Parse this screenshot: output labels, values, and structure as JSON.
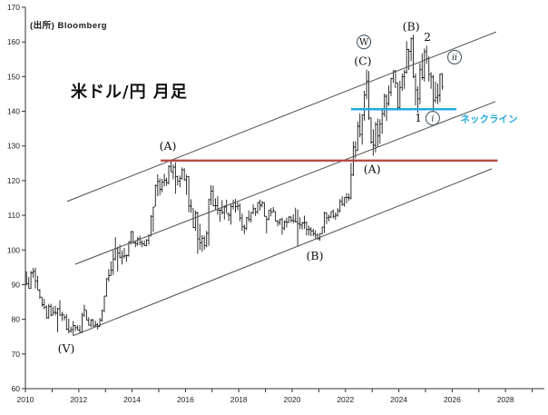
{
  "source_label": "(出所)  Bloomberg",
  "chart_title": "米ドル/円 月足",
  "colors": {
    "bars": "#1a1a1a",
    "axis": "#333333",
    "channel_line": "#5a5a5a",
    "resistance_line": "#b84a43",
    "neckline": "#22aade",
    "wave_label": "#111111",
    "circle_stroke": "#4a5a6a"
  },
  "chart_data": {
    "type": "ohlc-bar",
    "title": "米ドル/円 月足",
    "start_month": "2010-01",
    "months_hlc": [
      [
        93.8,
        89.8,
        90.3
      ],
      [
        92.2,
        88.9,
        88.9
      ],
      [
        94.0,
        88.8,
        93.4
      ],
      [
        94.8,
        92.0,
        93.8
      ],
      [
        94.9,
        88.9,
        91.0
      ],
      [
        92.5,
        88.5,
        88.4
      ],
      [
        88.7,
        85.9,
        86.4
      ],
      [
        86.4,
        83.6,
        84.2
      ],
      [
        85.9,
        82.9,
        83.5
      ],
      [
        84.0,
        80.2,
        80.4
      ],
      [
        84.4,
        80.2,
        83.7
      ],
      [
        84.5,
        80.9,
        81.1
      ],
      [
        83.7,
        81.3,
        82.0
      ],
      [
        83.9,
        81.1,
        81.8
      ],
      [
        83.3,
        76.3,
        83.1
      ],
      [
        85.5,
        81.0,
        81.2
      ],
      [
        82.2,
        79.5,
        81.5
      ],
      [
        81.3,
        79.7,
        80.6
      ],
      [
        81.5,
        76.9,
        77.2
      ],
      [
        80.2,
        75.9,
        76.6
      ],
      [
        77.9,
        76.1,
        77.0
      ],
      [
        79.5,
        75.3,
        78.2
      ],
      [
        78.3,
        76.6,
        77.6
      ],
      [
        78.3,
        76.9,
        76.9
      ],
      [
        78.3,
        76.0,
        76.3
      ],
      [
        81.9,
        76.0,
        81.2
      ],
      [
        84.2,
        80.6,
        82.8
      ],
      [
        82.6,
        79.7,
        79.8
      ],
      [
        80.6,
        78.2,
        78.3
      ],
      [
        80.1,
        77.7,
        79.8
      ],
      [
        80.1,
        77.9,
        78.1
      ],
      [
        79.6,
        77.9,
        78.4
      ],
      [
        78.9,
        77.1,
        77.9
      ],
      [
        80.4,
        77.9,
        79.8
      ],
      [
        82.8,
        79.3,
        82.5
      ],
      [
        86.8,
        82.1,
        86.7
      ],
      [
        91.9,
        86.5,
        91.7
      ],
      [
        94.5,
        90.9,
        92.6
      ],
      [
        96.7,
        92.6,
        94.2
      ],
      [
        99.9,
        92.8,
        97.4
      ],
      [
        103.7,
        96.9,
        100.4
      ],
      [
        100.9,
        93.8,
        99.1
      ],
      [
        101.5,
        97.6,
        97.9
      ],
      [
        99.9,
        95.8,
        98.2
      ],
      [
        100.6,
        97.5,
        98.3
      ],
      [
        98.7,
        96.6,
        98.4
      ],
      [
        102.4,
        98.1,
        102.4
      ],
      [
        105.4,
        101.6,
        105.3
      ],
      [
        105.4,
        101.8,
        102.0
      ],
      [
        102.7,
        100.8,
        101.8
      ],
      [
        103.8,
        101.2,
        103.2
      ],
      [
        104.1,
        101.3,
        102.2
      ],
      [
        102.8,
        100.8,
        101.8
      ],
      [
        102.8,
        101.1,
        101.3
      ],
      [
        103.1,
        101.1,
        102.8
      ],
      [
        104.5,
        101.5,
        104.1
      ],
      [
        110.1,
        103.9,
        109.7
      ],
      [
        112.5,
        105.2,
        112.3
      ],
      [
        118.9,
        112.6,
        118.6
      ],
      [
        121.8,
        115.5,
        119.8
      ],
      [
        120.7,
        115.8,
        117.5
      ],
      [
        120.5,
        116.6,
        119.6
      ],
      [
        122.0,
        118.3,
        120.1
      ],
      [
        120.8,
        118.5,
        119.4
      ],
      [
        124.5,
        118.9,
        124.1
      ],
      [
        125.9,
        122.5,
        122.5
      ],
      [
        124.6,
        120.4,
        123.9
      ],
      [
        125.3,
        116.2,
        121.2
      ],
      [
        121.4,
        118.6,
        119.9
      ],
      [
        121.5,
        118.1,
        120.6
      ],
      [
        123.8,
        120.3,
        123.1
      ],
      [
        123.6,
        120.0,
        120.2
      ],
      [
        121.7,
        115.9,
        121.1
      ],
      [
        121.3,
        110.9,
        112.7
      ],
      [
        114.6,
        110.7,
        112.6
      ],
      [
        111.9,
        106.3,
        106.5
      ],
      [
        111.4,
        105.5,
        110.7
      ],
      [
        111.0,
        98.9,
        103.2
      ],
      [
        107.5,
        100.0,
        102.1
      ],
      [
        104.3,
        99.5,
        103.4
      ],
      [
        104.1,
        100.1,
        101.3
      ],
      [
        105.5,
        100.8,
        104.8
      ],
      [
        114.8,
        101.2,
        114.5
      ],
      [
        118.7,
        112.9,
        117.0
      ],
      [
        118.6,
        112.6,
        112.8
      ],
      [
        114.9,
        111.6,
        112.8
      ],
      [
        115.5,
        110.1,
        111.4
      ],
      [
        111.8,
        108.1,
        111.5
      ],
      [
        114.4,
        110.2,
        110.8
      ],
      [
        112.9,
        108.8,
        112.4
      ],
      [
        114.5,
        110.6,
        110.3
      ],
      [
        110.9,
        108.3,
        110.0
      ],
      [
        113.3,
        107.3,
        112.5
      ],
      [
        114.5,
        111.7,
        113.6
      ],
      [
        114.7,
        110.8,
        112.5
      ],
      [
        113.8,
        111.4,
        112.7
      ],
      [
        113.4,
        108.3,
        109.2
      ],
      [
        110.5,
        105.5,
        106.7
      ],
      [
        107.3,
        104.6,
        106.3
      ],
      [
        109.5,
        105.7,
        109.3
      ],
      [
        111.4,
        108.1,
        108.8
      ],
      [
        110.9,
        107.9,
        110.8
      ],
      [
        113.2,
        110.3,
        111.9
      ],
      [
        112.2,
        109.8,
        111.0
      ],
      [
        113.7,
        110.4,
        113.7
      ],
      [
        114.5,
        111.4,
        112.9
      ],
      [
        114.2,
        112.3,
        113.6
      ],
      [
        113.8,
        109.6,
        109.7
      ],
      [
        109.7,
        104.8,
        108.9
      ],
      [
        111.5,
        108.5,
        111.4
      ],
      [
        112.1,
        109.7,
        110.9
      ],
      [
        112.4,
        110.8,
        111.4
      ],
      [
        111.1,
        108.3,
        108.3
      ],
      [
        108.7,
        106.8,
        107.9
      ],
      [
        109.0,
        107.2,
        108.8
      ],
      [
        109.3,
        104.4,
        106.3
      ],
      [
        108.5,
        105.7,
        108.1
      ],
      [
        109.3,
        106.5,
        108.0
      ],
      [
        109.7,
        107.8,
        109.5
      ],
      [
        109.7,
        107.9,
        108.6
      ],
      [
        110.3,
        107.7,
        108.4
      ],
      [
        112.2,
        107.9,
        108.1
      ],
      [
        111.7,
        101.2,
        107.5
      ],
      [
        109.4,
        106.0,
        107.2
      ],
      [
        108.1,
        105.9,
        107.8
      ],
      [
        109.9,
        106.1,
        107.9
      ],
      [
        108.2,
        104.2,
        105.9
      ],
      [
        107.0,
        104.2,
        105.9
      ],
      [
        106.6,
        104.0,
        105.5
      ],
      [
        106.1,
        104.0,
        104.7
      ],
      [
        105.7,
        103.2,
        104.3
      ],
      [
        104.8,
        102.9,
        103.3
      ],
      [
        104.9,
        102.6,
        104.7
      ],
      [
        106.7,
        104.5,
        106.6
      ],
      [
        111.0,
        104.9,
        110.7
      ],
      [
        110.8,
        107.5,
        109.3
      ],
      [
        110.2,
        108.3,
        109.5
      ],
      [
        111.1,
        109.2,
        111.1
      ],
      [
        111.7,
        109.1,
        109.7
      ],
      [
        110.8,
        108.7,
        110.0
      ],
      [
        112.1,
        109.6,
        111.3
      ],
      [
        114.7,
        110.8,
        114.0
      ],
      [
        115.5,
        112.7,
        113.2
      ],
      [
        115.2,
        112.5,
        115.1
      ],
      [
        116.4,
        113.5,
        115.1
      ],
      [
        116.3,
        114.2,
        115.0
      ],
      [
        125.1,
        114.6,
        121.7
      ],
      [
        131.3,
        121.3,
        129.7
      ],
      [
        131.4,
        126.4,
        128.7
      ],
      [
        137.0,
        128.6,
        135.7
      ],
      [
        139.4,
        132.5,
        133.3
      ],
      [
        139.1,
        130.4,
        138.9
      ],
      [
        145.9,
        137.3,
        144.7
      ],
      [
        152.0,
        143.5,
        148.7
      ],
      [
        151.6,
        137.5,
        138.1
      ],
      [
        138.2,
        130.6,
        131.1
      ],
      [
        134.8,
        127.2,
        130.2
      ],
      [
        136.9,
        128.1,
        136.2
      ],
      [
        137.9,
        129.6,
        132.9
      ],
      [
        137.7,
        130.6,
        136.3
      ],
      [
        140.9,
        133.5,
        139.3
      ],
      [
        145.1,
        138.4,
        144.3
      ],
      [
        144.9,
        137.2,
        142.2
      ],
      [
        147.4,
        141.5,
        145.5
      ],
      [
        149.7,
        144.4,
        149.4
      ],
      [
        151.7,
        148.2,
        151.7
      ],
      [
        151.9,
        146.7,
        148.2
      ],
      [
        148.3,
        140.2,
        141.0
      ],
      [
        148.8,
        140.8,
        146.9
      ],
      [
        150.9,
        145.9,
        150.0
      ],
      [
        152.0,
        146.5,
        151.3
      ],
      [
        160.2,
        150.8,
        157.8
      ],
      [
        158.0,
        151.9,
        157.3
      ],
      [
        161.3,
        154.5,
        160.9
      ],
      [
        162.0,
        149.6,
        150.0
      ],
      [
        150.9,
        141.7,
        146.2
      ],
      [
        147.2,
        139.6,
        143.6
      ],
      [
        153.9,
        142.0,
        152.0
      ],
      [
        156.7,
        149.1,
        149.7
      ],
      [
        158.1,
        148.6,
        157.2
      ],
      [
        158.9,
        153.7,
        155.2
      ],
      [
        155.9,
        148.6,
        150.6
      ],
      [
        151.3,
        146.5,
        149.9
      ],
      [
        150.5,
        139.9,
        143.1
      ],
      [
        148.6,
        142.4,
        144.0
      ],
      [
        148.0,
        142.1,
        144.6
      ],
      [
        150.9,
        142.7,
        150.7
      ],
      [
        151.0,
        146.2,
        147.1
      ]
    ],
    "x_axis": {
      "min_year": 2010,
      "max_year": 2029.5,
      "label_years": [
        2010,
        2012,
        2014,
        2016,
        2018,
        2020,
        2022,
        2024,
        2026,
        2028
      ],
      "minor_tick_step": 1
    },
    "y_axis": {
      "min": 60,
      "max": 170,
      "step": 10,
      "ticks": [
        170,
        160,
        150,
        140,
        130,
        120,
        110,
        100,
        90,
        80,
        70,
        60
      ]
    },
    "channel_lines": [
      {
        "name": "upper-channel-line",
        "from": {
          "year": 2011.56,
          "price": 114.0
        },
        "to": {
          "year": 2027.65,
          "price": 162.9
        }
      },
      {
        "name": "middle-channel-line",
        "from": {
          "year": 2011.87,
          "price": 95.9
        },
        "to": {
          "year": 2027.62,
          "price": 142.8
        }
      },
      {
        "name": "lower-channel-line",
        "from": {
          "year": 2011.8,
          "price": 75.3
        },
        "to": {
          "year": 2027.48,
          "price": 123.4
        }
      }
    ],
    "resistance_line": {
      "price": 125.8,
      "from_year": 2015.07,
      "to_year": 2027.7
    },
    "neckline": {
      "price": 140.6,
      "from_year": 2022.21,
      "to_year": 2026.16,
      "label": "ネックライン"
    },
    "annotations": [
      {
        "text": "(V)",
        "year": 2011.53,
        "price": 71.5,
        "style": "wave"
      },
      {
        "text": "(A)",
        "year": 2015.34,
        "price": 129.9,
        "style": "wave"
      },
      {
        "text": "(B)",
        "year": 2020.85,
        "price": 98.3,
        "style": "wave"
      },
      {
        "text": "(A)",
        "year": 2023.0,
        "price": 123.3,
        "style": "wave"
      },
      {
        "text": "(C)",
        "year": 2022.65,
        "price": 154.4,
        "style": "wave"
      },
      {
        "text": "W",
        "year": 2022.69,
        "price": 160.0,
        "style": "circled"
      },
      {
        "text": "(B)",
        "year": 2024.46,
        "price": 164.4,
        "style": "wave"
      },
      {
        "text": "2",
        "year": 2025.07,
        "price": 161.4,
        "style": "wave"
      },
      {
        "text": "ii",
        "year": 2026.09,
        "price": 155.6,
        "style": "circled"
      },
      {
        "text": "1",
        "year": 2024.73,
        "price": 138.0,
        "style": "wave"
      },
      {
        "text": "i",
        "year": 2025.27,
        "price": 138.0,
        "style": "circled"
      },
      {
        "text": "ネックライン",
        "year": 2027.38,
        "price": 137.8,
        "style": "neckline-label"
      }
    ]
  }
}
